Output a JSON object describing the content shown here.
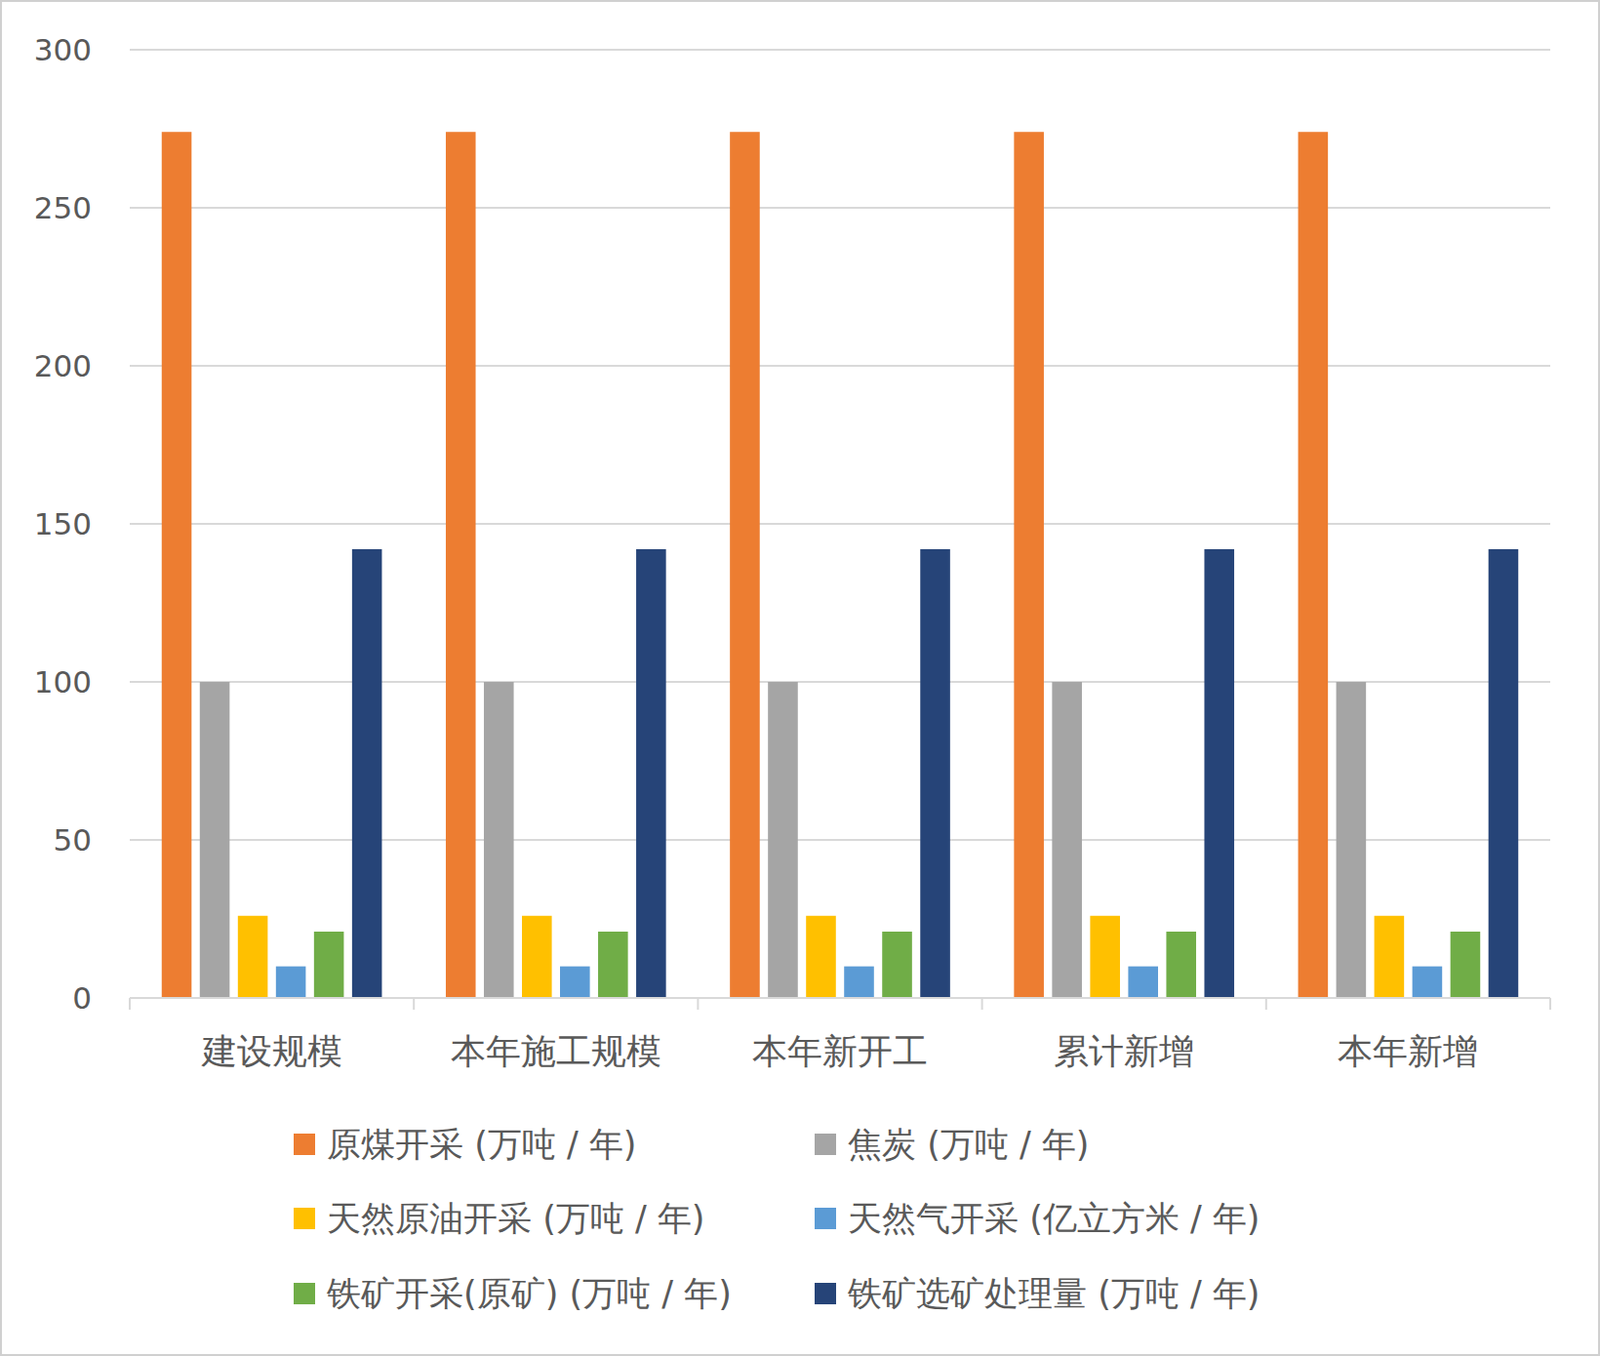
{
  "chart_data": {
    "type": "bar",
    "categories": [
      "建设规模",
      "本年施工规模",
      "本年新开工",
      "累计新增",
      "本年新增"
    ],
    "series": [
      {
        "name": "原煤开采 (万吨 / 年)",
        "color": "#ED7D31",
        "values": [
          274,
          274,
          274,
          274,
          274
        ]
      },
      {
        "name": "焦炭 (万吨 / 年)",
        "color": "#A5A5A5",
        "values": [
          100,
          100,
          100,
          100,
          100
        ]
      },
      {
        "name": "天然原油开采 (万吨 / 年)",
        "color": "#FFC000",
        "values": [
          26,
          26,
          26,
          26,
          26
        ]
      },
      {
        "name": "天然气开采 (亿立方米 / 年)",
        "color": "#5B9BD5",
        "values": [
          10,
          10,
          10,
          10,
          10
        ]
      },
      {
        "name": "铁矿开采(原矿) (万吨 / 年)",
        "color": "#70AD47",
        "values": [
          21,
          21,
          21,
          21,
          21
        ]
      },
      {
        "name": "铁矿选矿处理量 (万吨 / 年)",
        "color": "#264478",
        "values": [
          142,
          142,
          142,
          142,
          142
        ]
      }
    ],
    "ylim": [
      0,
      300
    ],
    "yticks": [
      0,
      50,
      100,
      150,
      200,
      250,
      300
    ],
    "grid": true,
    "legend": "bottom"
  }
}
